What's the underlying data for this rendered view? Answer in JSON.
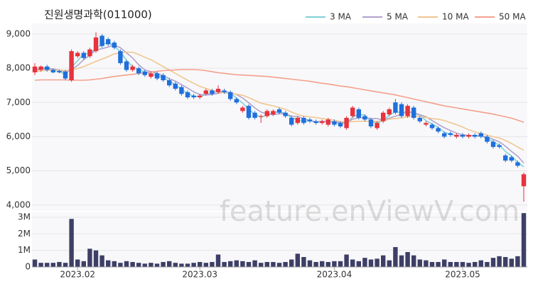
{
  "chart_data": [
    {
      "type": "candlestick",
      "title": "진원생명과학(011000)",
      "watermark": "feature.enViewV.com",
      "up_color": "#e8323c",
      "down_color": "#1f6fdc",
      "grid": true,
      "ylim": [
        3830,
        9310
      ],
      "yticks": [
        {
          "value": 4000,
          "label": "4,000"
        },
        {
          "value": 5000,
          "label": "5,000"
        },
        {
          "value": 6000,
          "label": "6,000"
        },
        {
          "value": 7000,
          "label": "7,000"
        },
        {
          "value": 8000,
          "label": "8,000"
        },
        {
          "value": 9000,
          "label": "9,000"
        }
      ],
      "open": [
        7880,
        7950,
        8050,
        7950,
        7920,
        7900,
        7650,
        8350,
        8450,
        8350,
        8500,
        8950,
        8850,
        8750,
        8500,
        8200,
        7950,
        8000,
        7900,
        7750,
        7850,
        7800,
        7650,
        7550,
        7450,
        7300,
        7200,
        7150,
        7250,
        7350,
        7300,
        7350,
        7300,
        7100,
        6750,
        6900,
        6700,
        6600,
        6600,
        6650,
        6800,
        6700,
        6550,
        6400,
        6550,
        6500,
        6450,
        6400,
        6350,
        6450,
        6400,
        6250,
        6600,
        6800,
        6600,
        6500,
        6250,
        6450,
        6650,
        7000,
        6950,
        6600,
        6850,
        6550,
        6350,
        6350,
        6250,
        6100,
        6100,
        6000,
        6050,
        6000,
        6050,
        6100,
        6000,
        5850,
        5750,
        5450,
        5400,
        5250,
        4550
      ],
      "high": [
        8150,
        8080,
        8100,
        7990,
        7960,
        7950,
        8550,
        8500,
        8500,
        8600,
        9050,
        9000,
        8900,
        8800,
        8550,
        8250,
        8100,
        8050,
        7950,
        7900,
        7900,
        7850,
        7700,
        7600,
        7500,
        7350,
        7250,
        7250,
        7400,
        7400,
        7500,
        7400,
        7350,
        7150,
        6900,
        6950,
        6750,
        6650,
        6800,
        6800,
        6850,
        6750,
        6600,
        6600,
        6600,
        6550,
        6500,
        6500,
        6550,
        6500,
        6450,
        6600,
        6900,
        6850,
        6650,
        6550,
        6450,
        6750,
        6850,
        7100,
        7000,
        6950,
        6900,
        6600,
        6450,
        6400,
        6300,
        6150,
        6150,
        6100,
        6100,
        6100,
        6100,
        6150,
        6050,
        5900,
        5800,
        5500,
        5450,
        5300,
        4950
      ],
      "low": [
        7800,
        7900,
        7900,
        7850,
        7850,
        7650,
        7600,
        8300,
        8250,
        8300,
        8450,
        8600,
        8650,
        8550,
        8100,
        7900,
        7900,
        7800,
        7750,
        7700,
        7650,
        7600,
        7450,
        7350,
        7200,
        7100,
        7100,
        7100,
        7200,
        7200,
        7250,
        7250,
        7050,
        6950,
        6700,
        6500,
        6500,
        6400,
        6550,
        6600,
        6650,
        6550,
        6300,
        6350,
        6350,
        6400,
        6350,
        6350,
        6300,
        6300,
        6250,
        6200,
        6550,
        6500,
        6450,
        6250,
        6200,
        6400,
        6600,
        6650,
        6550,
        6550,
        6500,
        6400,
        6300,
        6200,
        6100,
        5950,
        6000,
        5950,
        5950,
        5950,
        5950,
        5950,
        5800,
        5650,
        5650,
        5250,
        5250,
        5100,
        4100
      ],
      "close": [
        8050,
        8050,
        7950,
        7880,
        7880,
        7700,
        8500,
        8450,
        8300,
        8550,
        8900,
        8650,
        8700,
        8600,
        8150,
        7950,
        8050,
        7850,
        7800,
        7850,
        7700,
        7650,
        7500,
        7400,
        7250,
        7150,
        7150,
        7200,
        7350,
        7250,
        7400,
        7300,
        7100,
        7000,
        6850,
        6550,
        6550,
        6600,
        6750,
        6750,
        6700,
        6600,
        6350,
        6550,
        6400,
        6450,
        6400,
        6450,
        6500,
        6350,
        6300,
        6550,
        6850,
        6550,
        6500,
        6300,
        6400,
        6700,
        6800,
        6700,
        6600,
        6900,
        6550,
        6450,
        6400,
        6250,
        6150,
        6000,
        6050,
        6050,
        6000,
        6050,
        6000,
        6000,
        5850,
        5700,
        5700,
        5300,
        5300,
        5150,
        4900
      ],
      "series": [
        {
          "name": "3 MA",
          "color": "#7fd0d8",
          "values": [
            7950,
            8000,
            8020,
            7960,
            7900,
            7820,
            8030,
            8220,
            8420,
            8430,
            8580,
            8700,
            8750,
            8650,
            8480,
            8230,
            8050,
            7950,
            7900,
            7830,
            7780,
            7730,
            7620,
            7520,
            7380,
            7270,
            7180,
            7170,
            7230,
            7270,
            7330,
            7320,
            7270,
            7130,
            6980,
            6800,
            6650,
            6570,
            6630,
            6700,
            6730,
            6680,
            6550,
            6500,
            6430,
            6470,
            6420,
            6430,
            6450,
            6430,
            6380,
            6400,
            6570,
            6650,
            6630,
            6450,
            6400,
            6470,
            6630,
            6730,
            6700,
            6730,
            6680,
            6630,
            6470,
            6370,
            6270,
            6130,
            6070,
            6030,
            6030,
            6030,
            6020,
            6020,
            5950,
            5850,
            5750,
            5570,
            5430,
            5250,
            5120
          ]
        },
        {
          "name": "5 MA",
          "color": "#b0a2cc",
          "values": [
            7950,
            7970,
            7990,
            7980,
            7950,
            7890,
            7960,
            8080,
            8250,
            8380,
            8540,
            8570,
            8620,
            8680,
            8600,
            8450,
            8300,
            8100,
            7950,
            7900,
            7850,
            7780,
            7700,
            7620,
            7520,
            7420,
            7310,
            7230,
            7220,
            7230,
            7270,
            7300,
            7290,
            7230,
            7130,
            6990,
            6840,
            6720,
            6660,
            6640,
            6670,
            6670,
            6600,
            6590,
            6520,
            6470,
            6430,
            6450,
            6440,
            6420,
            6420,
            6420,
            6510,
            6550,
            6560,
            6530,
            6530,
            6480,
            6540,
            6600,
            6660,
            6740,
            6700,
            6640,
            6580,
            6470,
            6360,
            6260,
            6180,
            6100,
            6060,
            6030,
            6030,
            6020,
            5990,
            5920,
            5850,
            5720,
            5570,
            5430,
            5230
          ]
        },
        {
          "name": "10 MA",
          "color": "#f0c690",
          "values": [
            7900,
            7920,
            7940,
            7950,
            7950,
            7930,
            7950,
            7990,
            8050,
            8120,
            8200,
            8270,
            8340,
            8420,
            8450,
            8470,
            8470,
            8400,
            8320,
            8250,
            8150,
            8050,
            7950,
            7850,
            7750,
            7650,
            7560,
            7470,
            7410,
            7350,
            7310,
            7280,
            7260,
            7240,
            7210,
            7140,
            7060,
            6980,
            6940,
            6900,
            6850,
            6800,
            6720,
            6650,
            6600,
            6580,
            6560,
            6530,
            6510,
            6480,
            6440,
            6430,
            6440,
            6450,
            6450,
            6450,
            6450,
            6470,
            6510,
            6530,
            6550,
            6580,
            6600,
            6590,
            6560,
            6530,
            6510,
            6470,
            6410,
            6350,
            6280,
            6200,
            6140,
            6090,
            6050,
            6000,
            5960,
            5890,
            5800,
            5700,
            5600
          ]
        },
        {
          "name": "50 MA",
          "color": "#f4a08c",
          "values": [
            7650,
            7660,
            7660,
            7660,
            7660,
            7660,
            7650,
            7650,
            7650,
            7660,
            7680,
            7700,
            7730,
            7760,
            7780,
            7800,
            7820,
            7850,
            7870,
            7890,
            7910,
            7930,
            7940,
            7950,
            7960,
            7960,
            7960,
            7950,
            7930,
            7900,
            7870,
            7850,
            7830,
            7810,
            7800,
            7790,
            7780,
            7770,
            7760,
            7740,
            7720,
            7700,
            7680,
            7660,
            7640,
            7620,
            7590,
            7560,
            7540,
            7510,
            7480,
            7460,
            7430,
            7400,
            7370,
            7340,
            7310,
            7280,
            7250,
            7220,
            7180,
            7140,
            7100,
            7060,
            7020,
            6980,
            6940,
            6900,
            6870,
            6840,
            6810,
            6780,
            6750,
            6720,
            6690,
            6660,
            6620,
            6580,
            6540,
            6480,
            6420
          ]
        }
      ]
    },
    {
      "type": "bar",
      "color": "#3d3f66",
      "grid": true,
      "ylim": [
        0,
        3300000
      ],
      "yticks": [
        0,
        {
          "value": 1000000,
          "label": "1M"
        },
        {
          "value": 2000000,
          "label": "2M"
        },
        {
          "value": 3000000,
          "label": "3M"
        }
      ],
      "categories": [
        null,
        null,
        null,
        null,
        null,
        null,
        null,
        "2023.02",
        null,
        null,
        null,
        null,
        null,
        null,
        null,
        null,
        null,
        null,
        null,
        null,
        null,
        null,
        null,
        null,
        null,
        null,
        null,
        "2023.03",
        null,
        null,
        null,
        null,
        null,
        null,
        null,
        null,
        null,
        null,
        null,
        null,
        null,
        null,
        null,
        null,
        null,
        null,
        null,
        null,
        null,
        "2023.04",
        null,
        null,
        null,
        null,
        null,
        null,
        null,
        null,
        null,
        null,
        null,
        null,
        null,
        null,
        null,
        null,
        null,
        null,
        null,
        null,
        "2023.05",
        null,
        null,
        null,
        null,
        null,
        null,
        null,
        null,
        null,
        null
      ],
      "values": [
        450000,
        250000,
        250000,
        250000,
        300000,
        250000,
        2900000,
        450000,
        350000,
        1100000,
        1000000,
        700000,
        400000,
        350000,
        250000,
        350000,
        300000,
        250000,
        200000,
        250000,
        200000,
        300000,
        350000,
        250000,
        200000,
        200000,
        250000,
        300000,
        250000,
        300000,
        750000,
        300000,
        350000,
        400000,
        350000,
        300000,
        400000,
        250000,
        300000,
        300000,
        250000,
        300000,
        450000,
        800000,
        600000,
        400000,
        300000,
        350000,
        300000,
        350000,
        350000,
        750000,
        450000,
        350000,
        550000,
        450000,
        500000,
        700000,
        400000,
        1200000,
        700000,
        900000,
        700000,
        450000,
        400000,
        300000,
        300000,
        450000,
        300000,
        300000,
        300000,
        250000,
        300000,
        400000,
        300000,
        550000,
        650000,
        600000,
        500000,
        650000,
        3250000
      ]
    }
  ]
}
